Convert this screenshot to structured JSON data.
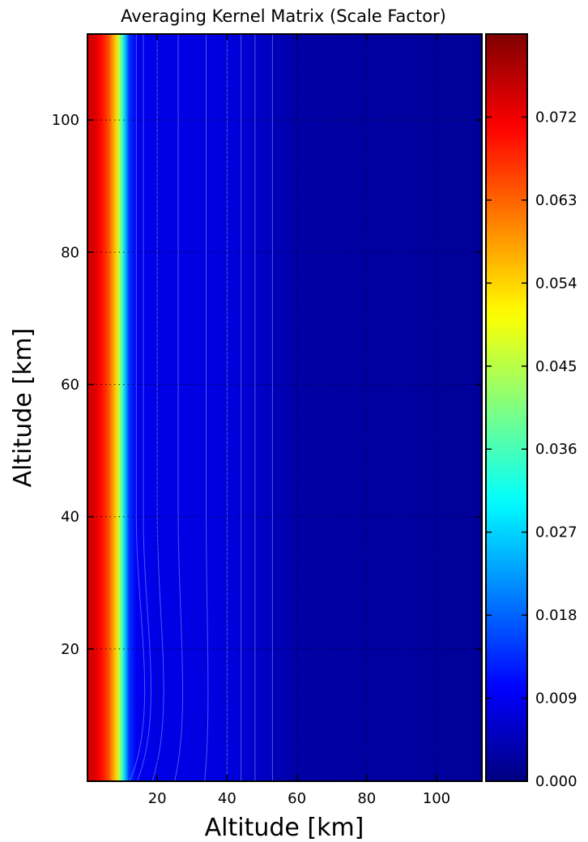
{
  "chart_data": {
    "type": "heatmap",
    "title": "Averaging Kernel Matrix (Scale Factor)",
    "xlabel": "Altitude [km]",
    "ylabel": "Altitude [km]",
    "xlim": [
      0,
      113
    ],
    "ylim": [
      0,
      113
    ],
    "x_ticks": [
      20,
      40,
      60,
      80,
      100
    ],
    "y_ticks": [
      20,
      40,
      60,
      80,
      100
    ],
    "x_tick_labels": [
      "20",
      "40",
      "60",
      "80",
      "100"
    ],
    "y_tick_labels": [
      "20",
      "40",
      "60",
      "80",
      "100"
    ],
    "grid": true,
    "colormap": "jet",
    "colorbar": {
      "range": [
        0.0,
        0.081
      ],
      "ticks": [
        0.0,
        0.009,
        0.018,
        0.027,
        0.036,
        0.045,
        0.054,
        0.063,
        0.072
      ],
      "tick_labels": [
        "0.000",
        "0.009",
        "0.018",
        "0.027",
        "0.036",
        "0.045",
        "0.054",
        "0.063",
        "0.072"
      ]
    },
    "profile_x": [
      0,
      2,
      3,
      4,
      6,
      8,
      9,
      10,
      11,
      12,
      14,
      16,
      20,
      30,
      40,
      50,
      60,
      113
    ],
    "profile_values": [
      0.074,
      0.074,
      0.072,
      0.07,
      0.065,
      0.055,
      0.046,
      0.035,
      0.024,
      0.014,
      0.009,
      0.0085,
      0.0082,
      0.0078,
      0.0075,
      0.0055,
      0.003,
      0.002
    ]
  }
}
